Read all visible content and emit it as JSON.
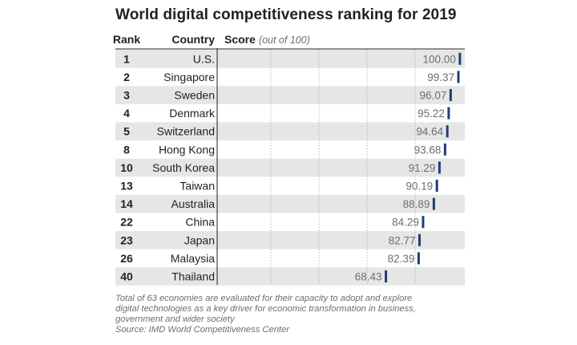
{
  "title": "World digital competitiveness ranking for 2019",
  "headers": {
    "rank": "Rank",
    "country": "Country",
    "score": "Score",
    "score_note": "(out of 100)"
  },
  "chart_data": {
    "type": "bar",
    "title": "World digital competitiveness ranking for 2019",
    "xlabel": "Score (out of 100)",
    "ylabel": "Country",
    "xlim": [
      0,
      100
    ],
    "rows": [
      {
        "rank": "1",
        "country": "U.S.",
        "score": 100.0,
        "label": "100.00"
      },
      {
        "rank": "2",
        "country": "Singapore",
        "score": 99.37,
        "label": "99.37"
      },
      {
        "rank": "3",
        "country": "Sweden",
        "score": 96.07,
        "label": "96.07"
      },
      {
        "rank": "4",
        "country": "Denmark",
        "score": 95.22,
        "label": "95.22"
      },
      {
        "rank": "5",
        "country": "Switzerland",
        "score": 94.64,
        "label": "94.64"
      },
      {
        "rank": "8",
        "country": "Hong Kong",
        "score": 93.68,
        "label": "93.68"
      },
      {
        "rank": "10",
        "country": "South Korea",
        "score": 91.29,
        "label": "91.29"
      },
      {
        "rank": "13",
        "country": "Taiwan",
        "score": 90.19,
        "label": "90.19"
      },
      {
        "rank": "14",
        "country": "Australia",
        "score": 88.89,
        "label": "88.89"
      },
      {
        "rank": "22",
        "country": "China",
        "score": 84.29,
        "label": "84.29"
      },
      {
        "rank": "23",
        "country": "Japan",
        "score": 82.77,
        "label": "82.77"
      },
      {
        "rank": "26",
        "country": "Malaysia",
        "score": 82.39,
        "label": "82.39"
      },
      {
        "rank": "40",
        "country": "Thailand",
        "score": 68.43,
        "label": "68.43"
      }
    ]
  },
  "footnote": {
    "line1": "Total of 63 economies are evaluated for their capacity to adopt and explore",
    "line2": "digital technologies as a key driver for economic transformation in business,",
    "line3": "government and wider society",
    "source": "Source: IMD World Competitiveness Center"
  },
  "colors": {
    "marker": "#1f3d74",
    "stripe": "#e6e6e6",
    "text": "#231f20",
    "muted": "#6d6e71"
  }
}
